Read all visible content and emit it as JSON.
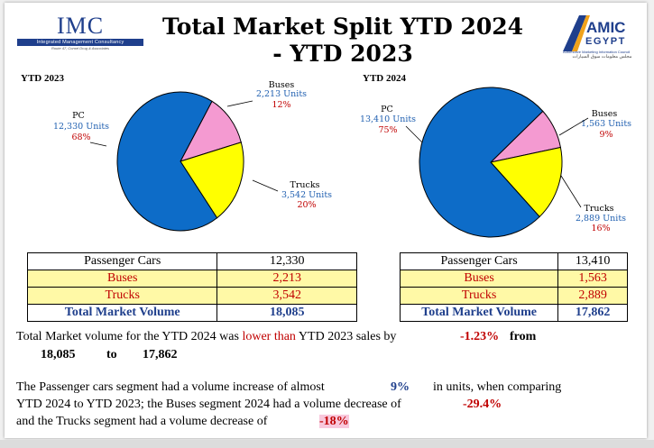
{
  "header": {
    "imc_name": "IMC",
    "imc_subtitle": "Integrated Management Consultancy",
    "imc_tagline": "Route 47, Cornel Drug & Associates",
    "title_line1": "Total Market Split YTD 2024",
    "title_line2": "- YTD 2023",
    "amic_name_top": "AMIC",
    "amic_name_bottom": "EGYPT",
    "amic_subtitle": "Automotive Marketing Information Council",
    "amic_arabic": "مجلس معلومات سوق السيارات"
  },
  "colors": {
    "pc": "#0d6cc8",
    "buses": "#f49ad1",
    "trucks": "#ffff00",
    "label_blue": "#1f5fb0",
    "label_red": "#c00000"
  },
  "chart_data": [
    {
      "type": "pie",
      "title": "YTD 2023",
      "slices": [
        {
          "name": "PC",
          "value": 12330,
          "units_label": "12,330 Units",
          "pct_label": "68%",
          "color": "#0d6cc8"
        },
        {
          "name": "Buses",
          "value": 2213,
          "units_label": "2,213 Units",
          "pct_label": "12%",
          "color": "#f49ad1"
        },
        {
          "name": "Trucks",
          "value": 3542,
          "units_label": "3,542 Units",
          "pct_label": "20%",
          "color": "#ffff00"
        }
      ]
    },
    {
      "type": "pie",
      "title": "YTD 2024",
      "slices": [
        {
          "name": "PC",
          "value": 13410,
          "units_label": "13,410 Units",
          "pct_label": "75%",
          "color": "#0d6cc8"
        },
        {
          "name": "Buses",
          "value": 1563,
          "units_label": "1,563 Units",
          "pct_label": "9%",
          "color": "#f49ad1"
        },
        {
          "name": "Trucks",
          "value": 2889,
          "units_label": "2,889 Units",
          "pct_label": "16%",
          "color": "#ffff00"
        }
      ]
    }
  ],
  "tables": {
    "ytd2023": {
      "pc_label": "Passenger Cars",
      "pc_value": "12,330",
      "bus_label": "Buses",
      "bus_value": "2,213",
      "truck_label": "Trucks",
      "truck_value": "3,542",
      "total_label": "Total Market Volume",
      "total_value": "18,085"
    },
    "ytd2024": {
      "pc_label": "Passenger Cars",
      "pc_value": "13,410",
      "bus_label": "Buses",
      "bus_value": "1,563",
      "truck_label": "Trucks",
      "truck_value": "2,889",
      "total_label": "Total Market Volume",
      "total_value": "17,862"
    }
  },
  "summary": {
    "line1_a": "Total Market volume for the YTD 2024 was ",
    "line1_b": "lower than",
    "line1_c": " YTD 2023 sales by",
    "line1_pct": "-1.23%",
    "line1_from": "from",
    "line2_from_val": "18,085",
    "line2_to": "to",
    "line2_to_val": "17,862",
    "para1_a": "The Passenger cars segment had a volume increase of almost",
    "para1_pct": "9%",
    "para1_b": "in units, when comparing",
    "para2_a": "YTD 2024 to YTD 2023; the Buses segment 2024  had a volume decrease of",
    "para2_pct": "-29.4%",
    "para3_a": " and the Trucks segment had a volume decrease of",
    "para3_pct": "-18%"
  }
}
